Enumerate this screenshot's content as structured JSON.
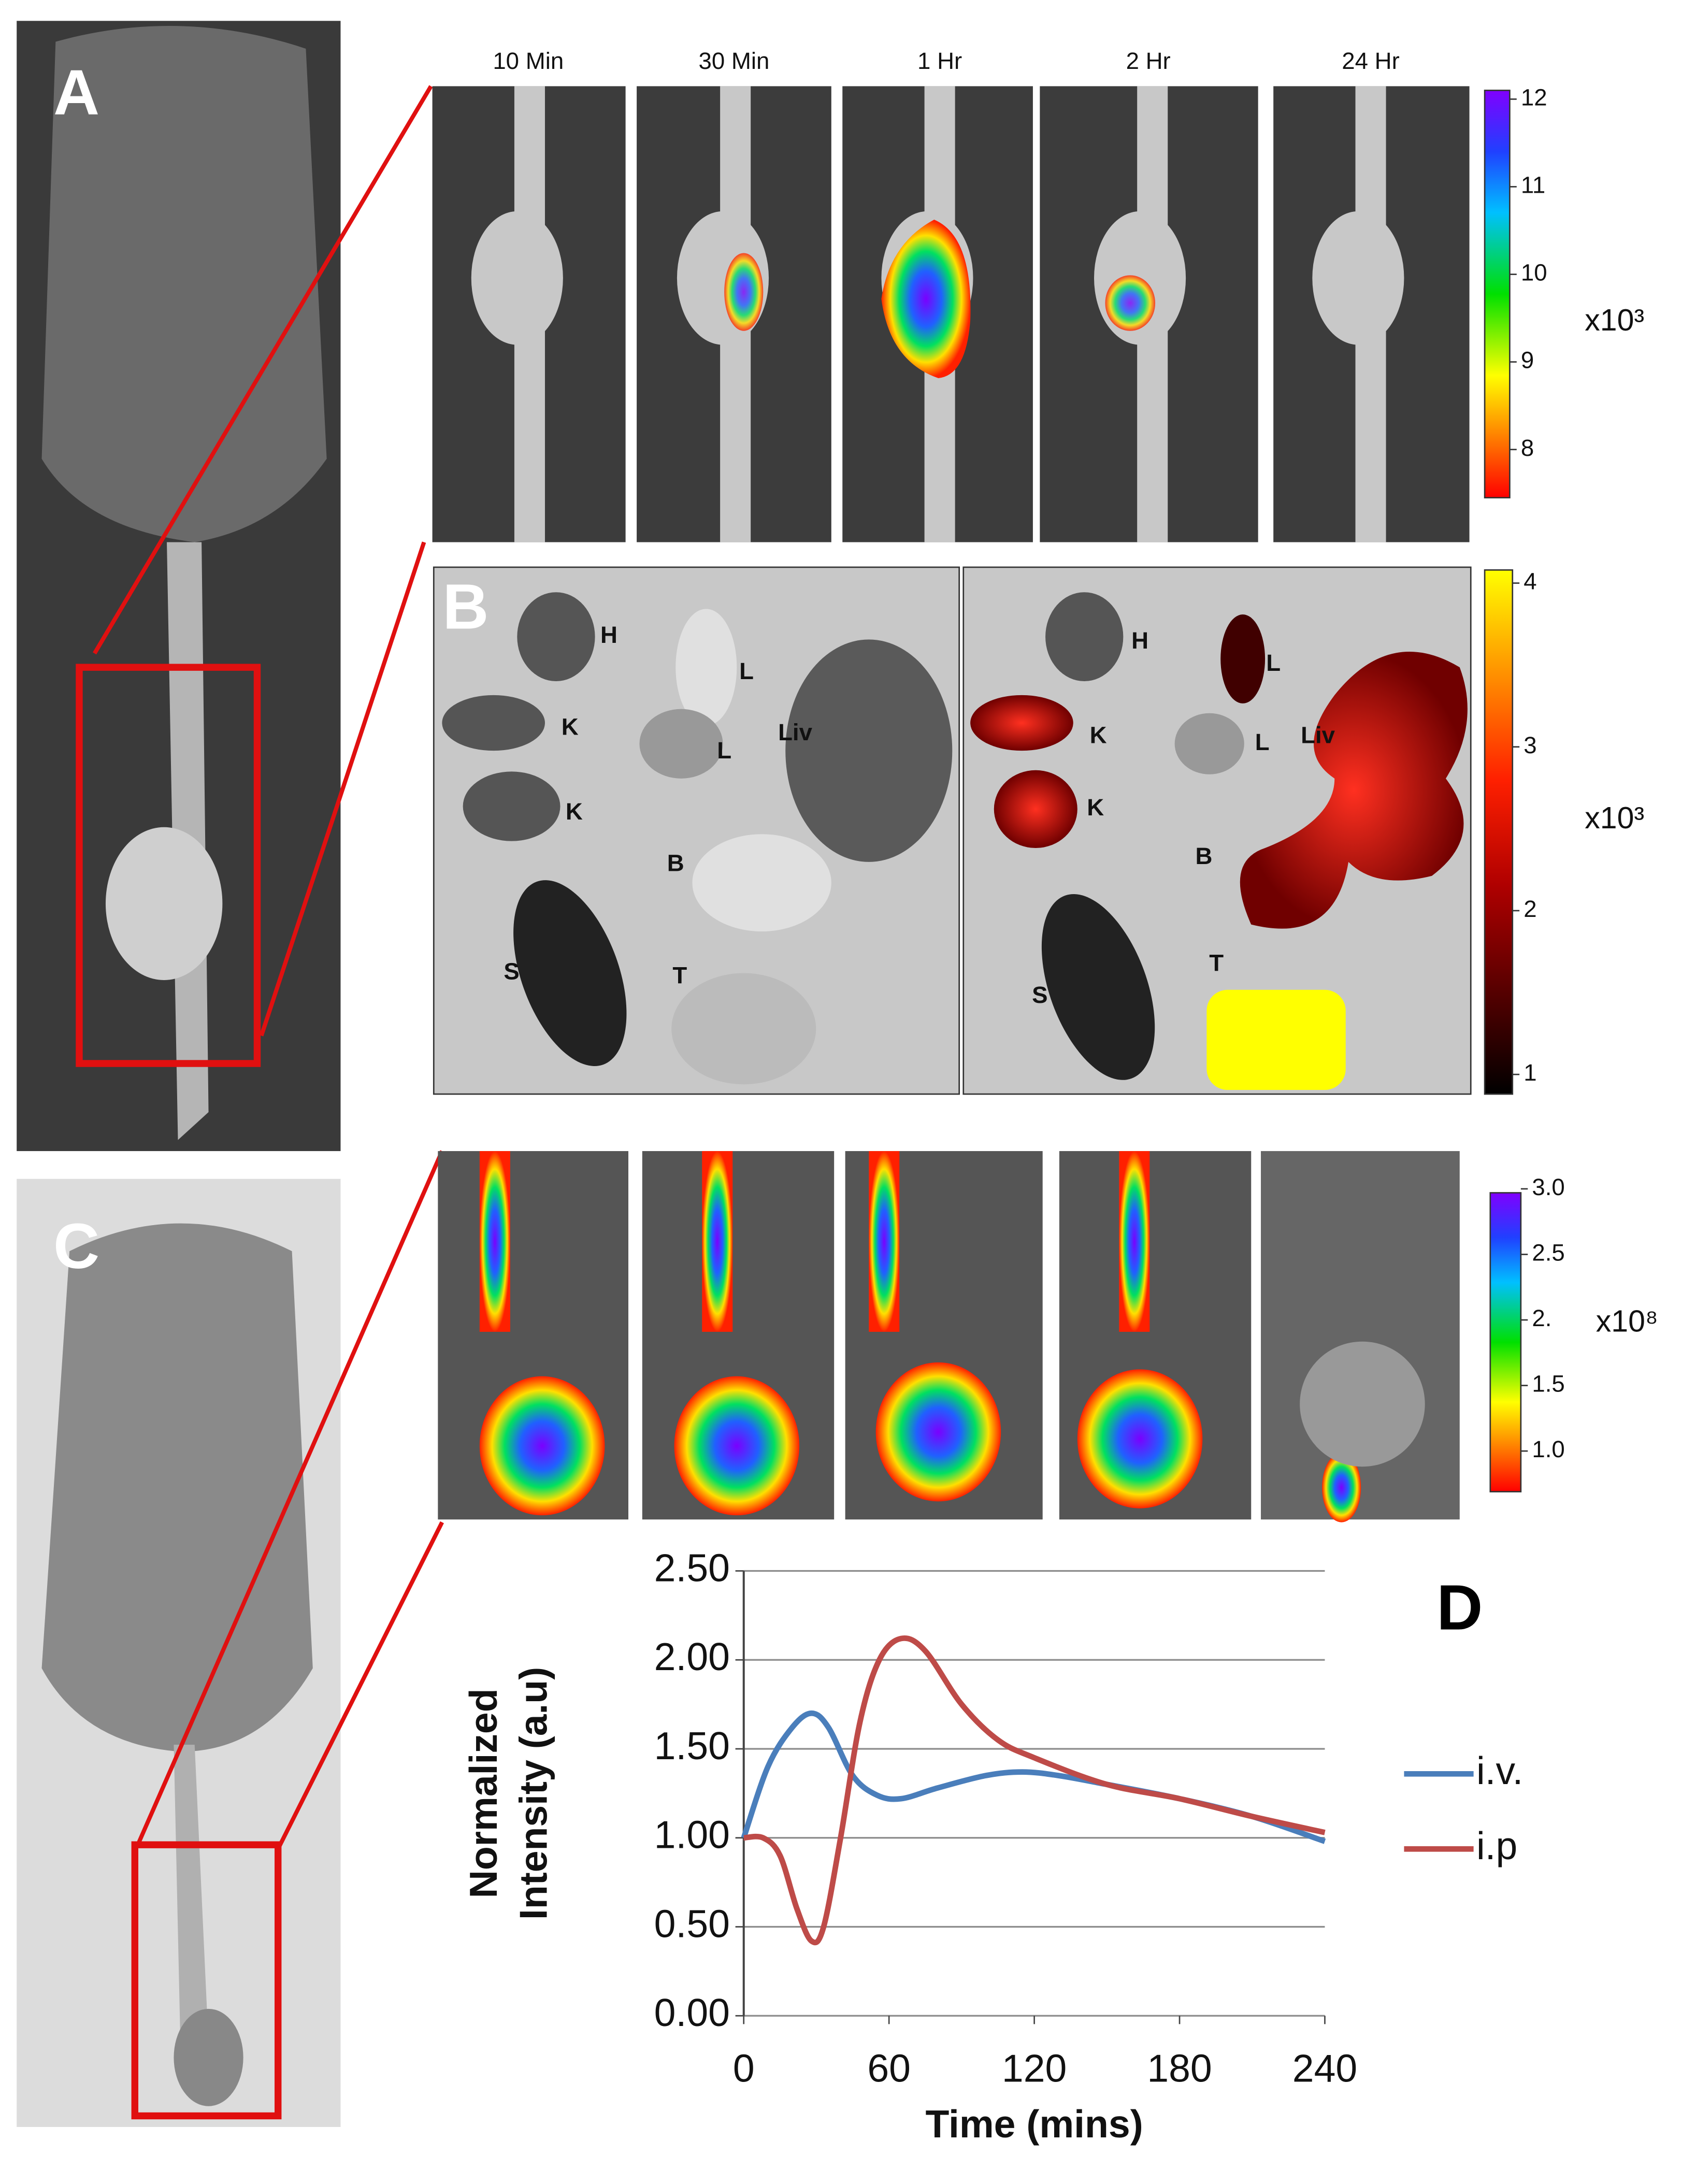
{
  "panel_labels": {
    "a": "A",
    "b": "B",
    "c": "C",
    "d": "D"
  },
  "panel_a": {
    "time_labels": [
      "10 Min",
      "30 Min",
      "1 Hr",
      "2 Hr",
      "24 Hr"
    ],
    "colorbar": {
      "clim": [
        7.45,
        12.1
      ],
      "ticks": [
        8,
        9,
        10,
        11,
        12
      ],
      "unit": "x10³"
    }
  },
  "panel_b": {
    "organs_left": [
      "H",
      "L",
      "K",
      "L",
      "Liv",
      "K",
      "B",
      "S",
      "T"
    ],
    "organs_right": [
      "H",
      "L",
      "K",
      "L",
      "Liv",
      "K",
      "B",
      "S",
      "T"
    ],
    "colorbar": {
      "clim": [
        0.88,
        4.08
      ],
      "ticks": [
        1,
        2,
        3,
        4
      ],
      "unit": "x10³"
    }
  },
  "panel_c": {
    "colorbar": {
      "clim": [
        0.69,
        2.97
      ],
      "ticks": [
        {
          "value": 1,
          "label": "1.0"
        },
        {
          "value": 1.5,
          "label": "1.5"
        },
        {
          "value": 2,
          "label": "2."
        },
        {
          "value": 2.5,
          "label": "2.5"
        },
        {
          "value": 3,
          "label": "3.0"
        }
      ],
      "unit": "x10⁸"
    }
  },
  "chart_data": {
    "type": "line",
    "xlabel": "Time (mins)",
    "ylabel": [
      "Normalized",
      "Intensity (a.u)"
    ],
    "xlim": [
      0,
      240
    ],
    "ylim": [
      0,
      2.5
    ],
    "xticks": [
      0,
      60,
      120,
      180,
      240
    ],
    "yticks": [
      {
        "value": 0,
        "label": "0.00"
      },
      {
        "value": 0.5,
        "label": "0.50"
      },
      {
        "value": 1,
        "label": "1.00"
      },
      {
        "value": 1.5,
        "label": "1.50"
      },
      {
        "value": 2,
        "label": "2.00"
      },
      {
        "value": 2.5,
        "label": "2.50"
      }
    ],
    "grid": true,
    "legend": "right",
    "series": [
      {
        "name": "i.v.",
        "color": "#4a7ebb",
        "x": [
          0,
          10,
          20,
          28,
          35,
          45,
          55,
          65,
          80,
          100,
          115,
          130,
          150,
          180,
          210,
          240
        ],
        "values": [
          1.0,
          1.4,
          1.62,
          1.7,
          1.62,
          1.35,
          1.24,
          1.22,
          1.28,
          1.35,
          1.37,
          1.35,
          1.3,
          1.22,
          1.12,
          0.98
        ]
      },
      {
        "name": "i.p",
        "color": "#be4b48",
        "x": [
          0,
          8,
          15,
          22,
          28,
          33,
          40,
          48,
          56,
          65,
          75,
          90,
          105,
          120,
          150,
          180,
          210,
          240
        ],
        "values": [
          1.0,
          1.0,
          0.9,
          0.6,
          0.42,
          0.5,
          1.0,
          1.65,
          2.0,
          2.12,
          2.05,
          1.75,
          1.55,
          1.45,
          1.3,
          1.22,
          1.12,
          1.03
        ]
      }
    ]
  }
}
